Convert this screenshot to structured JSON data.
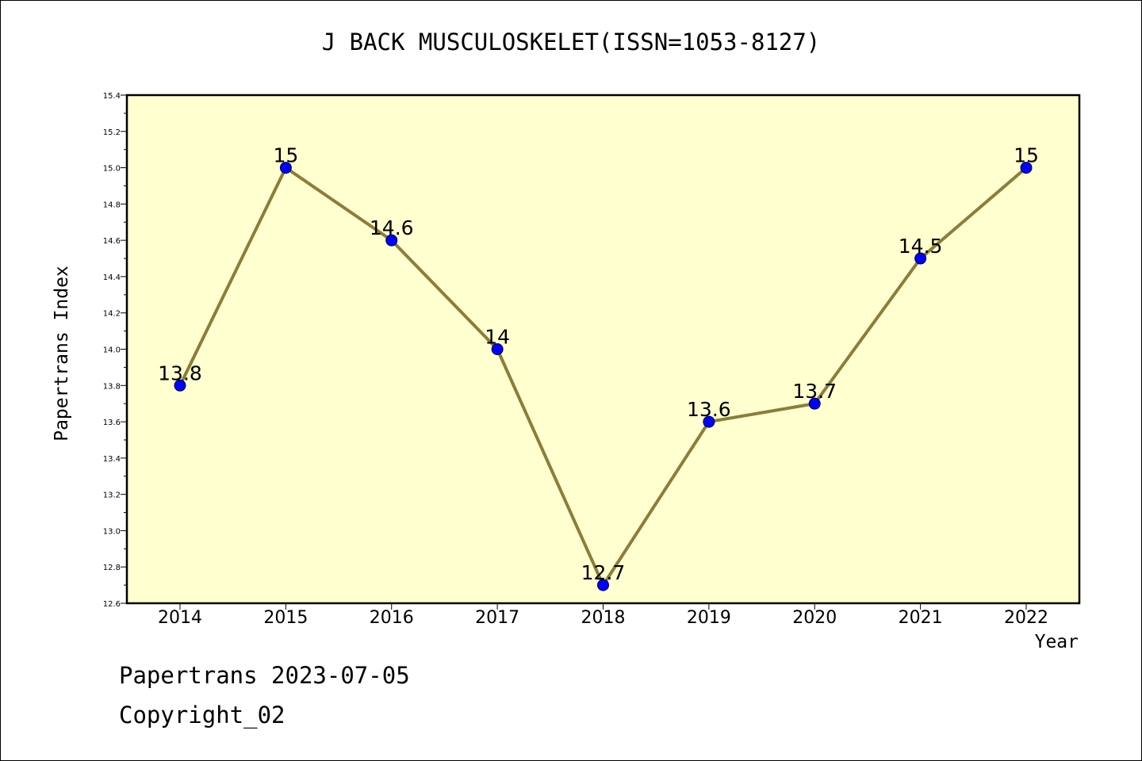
{
  "chart_data": {
    "type": "line",
    "title": "J BACK MUSCULOSKELET(ISSN=1053-8127)",
    "xlabel": "Year",
    "ylabel": "Papertrans Index",
    "categories": [
      "2014",
      "2015",
      "2016",
      "2017",
      "2018",
      "2019",
      "2020",
      "2021",
      "2022"
    ],
    "values": [
      13.8,
      15,
      14.6,
      14,
      12.7,
      13.6,
      13.7,
      14.5,
      15
    ],
    "data_labels": [
      "13.8",
      "15",
      "14.6",
      "14",
      "12.7",
      "13.6",
      "13.7",
      "14.5",
      "15"
    ],
    "ylim": [
      12.6,
      15.4
    ],
    "yticks": [
      "12.6",
      "12.8",
      "13.0",
      "13.2",
      "13.4",
      "13.6",
      "13.8",
      "14.0",
      "14.2",
      "14.4",
      "14.6",
      "14.8",
      "15.0",
      "15.2",
      "15.4"
    ],
    "grid": false,
    "colors": {
      "plot_background": "#ffffd0",
      "line": "#8b7d3a",
      "marker": "#0000ff"
    }
  },
  "footer": {
    "date_text": "Papertrans 2023-07-05",
    "copyright_text": "Copyright_02"
  }
}
